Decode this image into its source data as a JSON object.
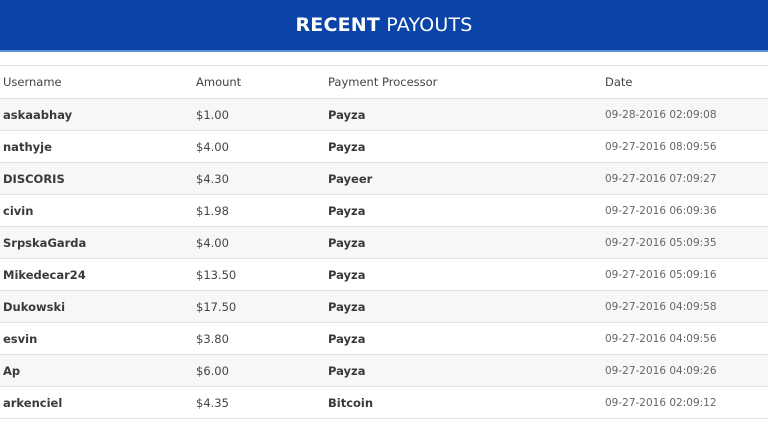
{
  "title": {
    "bold": "RECENT",
    "rest": "PAYOUTS"
  },
  "colors": {
    "banner": "#0a44a8"
  },
  "columns": [
    "Username",
    "Amount",
    "Payment Processor",
    "Date"
  ],
  "rows": [
    {
      "username": "askaabhay",
      "amount": "$1.00",
      "processor": "Payza",
      "date": "09-28-2016 02:09:08"
    },
    {
      "username": "nathyje",
      "amount": "$4.00",
      "processor": "Payza",
      "date": "09-27-2016 08:09:56"
    },
    {
      "username": "DISCORIS",
      "amount": "$4.30",
      "processor": "Payeer",
      "date": "09-27-2016 07:09:27"
    },
    {
      "username": "civin",
      "amount": "$1.98",
      "processor": "Payza",
      "date": "09-27-2016 06:09:36"
    },
    {
      "username": "SrpskaGarda",
      "amount": "$4.00",
      "processor": "Payza",
      "date": "09-27-2016 05:09:35"
    },
    {
      "username": "Mikedecar24",
      "amount": "$13.50",
      "processor": "Payza",
      "date": "09-27-2016 05:09:16"
    },
    {
      "username": "Dukowski",
      "amount": "$17.50",
      "processor": "Payza",
      "date": "09-27-2016 04:09:58"
    },
    {
      "username": "esvin",
      "amount": "$3.80",
      "processor": "Payza",
      "date": "09-27-2016 04:09:56"
    },
    {
      "username": "Ap",
      "amount": "$6.00",
      "processor": "Payza",
      "date": "09-27-2016 04:09:26"
    },
    {
      "username": "arkenciel",
      "amount": "$4.35",
      "processor": "Bitcoin",
      "date": "09-27-2016 02:09:12"
    }
  ]
}
